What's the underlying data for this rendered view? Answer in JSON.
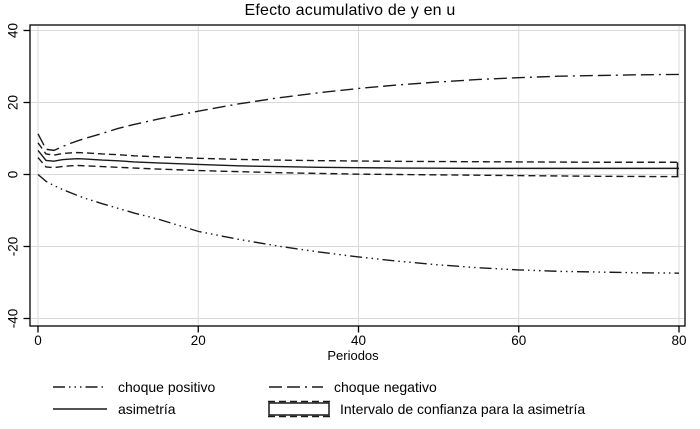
{
  "title": "Efecto acumulativo de y en u",
  "axes": {
    "xlabel": "Periodos",
    "x_tick_labels": [
      "0",
      "20",
      "40",
      "60",
      "80"
    ],
    "y_tick_labels": [
      "40",
      "20",
      "0",
      "-20",
      "-40"
    ]
  },
  "legend": {
    "items": [
      {
        "label": "choque positivo",
        "pattern": "dash_dot_dot",
        "swatch": "line"
      },
      {
        "label": "choque negativo",
        "pattern": "longdash_dot",
        "swatch": "line"
      },
      {
        "label": "asimetría",
        "pattern": "solid",
        "swatch": "line"
      },
      {
        "label": "Intervalo de confianza para la asimetría",
        "pattern": "dash",
        "swatch": "rect"
      }
    ]
  },
  "colors": {
    "line": "#1a1a1a",
    "grid": "#d9d9d9",
    "frame": "#000000",
    "background": "#ffffff",
    "text": "#000000"
  },
  "chart_data": {
    "type": "line",
    "title": "Efecto acumulativo de y en u",
    "xlabel": "Periodos",
    "ylabel": "",
    "xlim": [
      0,
      80
    ],
    "ylim": [
      -40,
      40
    ],
    "x_ticks": [
      0,
      20,
      40,
      60,
      80
    ],
    "y_ticks": [
      40,
      20,
      0,
      -20,
      -40
    ],
    "grid": true,
    "legend_position": "bottom",
    "x": [
      0,
      1,
      2,
      3,
      4,
      5,
      6,
      8,
      10,
      12,
      15,
      20,
      25,
      30,
      35,
      40,
      45,
      50,
      55,
      60,
      65,
      70,
      75,
      80
    ],
    "series": [
      {
        "name": "choque positivo",
        "pattern": "dash_dot_dot",
        "values": [
          0,
          -1.9,
          -3.1,
          -4.1,
          -5.0,
          -5.9,
          -6.7,
          -8.1,
          -9.4,
          -10.7,
          -12.4,
          -15.8,
          -18.0,
          -19.9,
          -21.5,
          -22.9,
          -24.1,
          -25.1,
          -25.9,
          -26.5,
          -26.9,
          -27.1,
          -27.3,
          -27.4
        ]
      },
      {
        "name": "choque negativo",
        "pattern": "longdash_dot",
        "values": [
          11.3,
          7.0,
          6.7,
          7.7,
          8.6,
          9.4,
          10.1,
          11.4,
          12.8,
          13.9,
          15.4,
          17.6,
          19.6,
          21.3,
          22.7,
          23.9,
          24.9,
          25.7,
          26.4,
          26.9,
          27.3,
          27.5,
          27.7,
          27.8
        ]
      },
      {
        "name": "asimetría",
        "pattern": "solid",
        "values": [
          6.7,
          3.9,
          3.7,
          4.1,
          4.3,
          4.4,
          4.3,
          4.0,
          3.8,
          3.5,
          3.2,
          2.8,
          2.4,
          2.2,
          2.0,
          1.9,
          1.8,
          1.75,
          1.7,
          1.7,
          1.7,
          1.7,
          1.7,
          1.7
        ]
      },
      {
        "name": "intervalo de confianza superior (asimetría)",
        "pattern": "dash",
        "values": [
          8.8,
          5.7,
          5.4,
          5.8,
          6.0,
          6.1,
          6.0,
          5.7,
          5.5,
          5.2,
          4.9,
          4.5,
          4.2,
          4.0,
          3.85,
          3.75,
          3.65,
          3.6,
          3.55,
          3.5,
          3.45,
          3.4,
          3.4,
          3.4
        ]
      },
      {
        "name": "intervalo de confianza inferior (asimetría)",
        "pattern": "dash",
        "values": [
          4.7,
          2.1,
          1.9,
          2.2,
          2.4,
          2.5,
          2.4,
          2.2,
          2.0,
          1.8,
          1.5,
          1.1,
          0.8,
          0.5,
          0.3,
          0.1,
          0,
          -0.1,
          -0.2,
          -0.3,
          -0.4,
          -0.5,
          -0.55,
          -0.6
        ]
      }
    ]
  }
}
